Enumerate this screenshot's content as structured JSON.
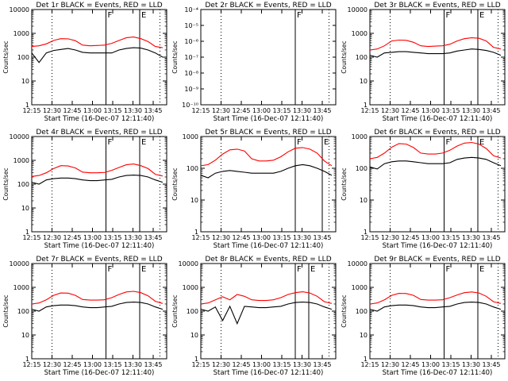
{
  "figure": {
    "x_ticks": [
      "12:15",
      "12:30",
      "12:45",
      "13:00",
      "13:15",
      "13:30",
      "13:45"
    ],
    "x_tick_values": [
      0,
      15,
      30,
      45,
      60,
      75,
      90
    ],
    "x_range": [
      0,
      100
    ],
    "xlabel": "Start Time (16-Dec-07 12:11:40)",
    "ylabel": "Counts/sec",
    "log_ticks": [
      "1",
      "10",
      "100",
      "1000",
      "10000"
    ],
    "tiny_ticks": [
      "10⁻⁴",
      "10⁻⁵",
      "10⁻⁶",
      "10⁻⁷",
      "10⁻⁸",
      "10⁻⁹",
      "10⁻¹⁰"
    ],
    "marker_labels": [
      "E",
      "F",
      "E"
    ],
    "series_colors": {
      "events": "#000000",
      "lld": "#ff0000"
    }
  },
  "chart_data": [
    {
      "type": "line",
      "title": "Det 1r BLACK = Events, RED = LLD",
      "y_scale": "log",
      "ylim": [
        1,
        10000
      ],
      "markers": [
        {
          "minute": 0,
          "style": "dotted"
        },
        {
          "minute": 15,
          "style": "dotted"
        },
        {
          "minute": 55,
          "style": "solid",
          "label": "F"
        },
        {
          "minute": 80,
          "style": "solid",
          "label": "E"
        },
        {
          "minute": 95,
          "style": "dotted"
        }
      ],
      "events": [
        150,
        60,
        150,
        190,
        210,
        230,
        200,
        160,
        150,
        150,
        150,
        150,
        200,
        230,
        250,
        240,
        200,
        150,
        100
      ],
      "lld": [
        280,
        300,
        360,
        500,
        600,
        590,
        490,
        320,
        300,
        310,
        320,
        380,
        500,
        650,
        700,
        600,
        450,
        280,
        250
      ]
    },
    {
      "type": "line",
      "title": "Det 2r BLACK = Events, RED = LLD",
      "y_scale": "log",
      "ylim": [
        1e-10,
        0.0001
      ],
      "markers": [
        {
          "minute": 15,
          "style": "dotted"
        },
        {
          "minute": 70,
          "style": "solid",
          "label": "F"
        },
        {
          "minute": 95,
          "style": "dotted"
        }
      ],
      "events": [],
      "lld": []
    },
    {
      "type": "line",
      "title": "Det 3r BLACK = Events, RED = LLD",
      "y_scale": "log",
      "ylim": [
        1,
        10000
      ],
      "markers": [
        {
          "minute": 15,
          "style": "dotted"
        },
        {
          "minute": 55,
          "style": "solid",
          "label": "F"
        },
        {
          "minute": 80,
          "style": "solid",
          "label": "E"
        },
        {
          "minute": 95,
          "style": "dotted"
        }
      ],
      "events": [
        120,
        100,
        150,
        160,
        170,
        170,
        160,
        150,
        140,
        140,
        140,
        150,
        180,
        200,
        220,
        210,
        190,
        160,
        120
      ],
      "lld": [
        200,
        220,
        300,
        480,
        520,
        510,
        420,
        300,
        280,
        290,
        300,
        350,
        480,
        600,
        650,
        620,
        480,
        260,
        220
      ]
    },
    {
      "type": "line",
      "title": "Det 4r BLACK = Events, RED = LLD",
      "y_scale": "log",
      "ylim": [
        1,
        10000
      ],
      "markers": [
        {
          "minute": 0,
          "style": "dotted"
        },
        {
          "minute": 15,
          "style": "dotted"
        },
        {
          "minute": 55,
          "style": "solid",
          "label": "F"
        },
        {
          "minute": 80,
          "style": "solid",
          "label": "E"
        },
        {
          "minute": 95,
          "style": "dotted"
        }
      ],
      "events": [
        120,
        100,
        150,
        170,
        180,
        180,
        170,
        150,
        140,
        140,
        150,
        160,
        200,
        230,
        240,
        230,
        200,
        150,
        120
      ],
      "lld": [
        210,
        230,
        300,
        450,
        600,
        580,
        480,
        320,
        300,
        300,
        310,
        380,
        500,
        650,
        700,
        600,
        450,
        260,
        220
      ]
    },
    {
      "type": "line",
      "title": "Det 5r BLACK = Events, RED = LLD",
      "y_scale": "log",
      "ylim": [
        1,
        1000
      ],
      "markers": [
        {
          "minute": 15,
          "style": "dotted"
        },
        {
          "minute": 70,
          "style": "solid",
          "label": "F"
        },
        {
          "minute": 90,
          "style": "solid",
          "label": "E"
        },
        {
          "minute": 95,
          "style": "dotted"
        }
      ],
      "events": [
        60,
        50,
        70,
        80,
        85,
        80,
        75,
        70,
        70,
        70,
        70,
        80,
        100,
        120,
        130,
        120,
        100,
        80,
        60
      ],
      "lld": [
        120,
        130,
        180,
        280,
        380,
        400,
        350,
        200,
        170,
        170,
        180,
        230,
        330,
        430,
        450,
        400,
        300,
        170,
        120
      ]
    },
    {
      "type": "line",
      "title": "Det 6r BLACK = Events, RED = LLD",
      "y_scale": "log",
      "ylim": [
        1,
        1000
      ],
      "markers": [
        {
          "minute": 15,
          "style": "dotted"
        },
        {
          "minute": 55,
          "style": "solid",
          "label": "F"
        },
        {
          "minute": 80,
          "style": "solid",
          "label": "E"
        },
        {
          "minute": 95,
          "style": "dotted"
        }
      ],
      "events": [
        110,
        95,
        140,
        160,
        170,
        170,
        160,
        150,
        140,
        140,
        140,
        150,
        190,
        210,
        220,
        210,
        190,
        150,
        120
      ],
      "lld": [
        200,
        220,
        300,
        460,
        600,
        580,
        450,
        300,
        280,
        280,
        300,
        370,
        500,
        620,
        650,
        580,
        420,
        250,
        210
      ]
    },
    {
      "type": "line",
      "title": "Det 7r BLACK = Events, RED = LLD",
      "y_scale": "log",
      "ylim": [
        1,
        10000
      ],
      "markers": [
        {
          "minute": 0,
          "style": "dotted"
        },
        {
          "minute": 15,
          "style": "dotted"
        },
        {
          "minute": 55,
          "style": "solid",
          "label": "F"
        },
        {
          "minute": 80,
          "style": "solid",
          "label": "E"
        },
        {
          "minute": 95,
          "style": "dotted"
        }
      ],
      "events": [
        120,
        100,
        150,
        170,
        180,
        180,
        170,
        150,
        140,
        140,
        150,
        160,
        200,
        230,
        240,
        230,
        200,
        150,
        120
      ],
      "lld": [
        200,
        220,
        300,
        460,
        580,
        570,
        460,
        310,
        290,
        290,
        300,
        370,
        500,
        640,
        680,
        600,
        440,
        260,
        210
      ]
    },
    {
      "type": "line",
      "title": "Det 8r BLACK = Events, RED = LLD",
      "y_scale": "log",
      "ylim": [
        1,
        10000
      ],
      "markers": [
        {
          "minute": 15,
          "style": "dotted"
        },
        {
          "minute": 70,
          "style": "solid",
          "label": "F"
        },
        {
          "minute": 80,
          "style": "solid",
          "label": "E"
        },
        {
          "minute": 95,
          "style": "dotted"
        }
      ],
      "events": [
        120,
        100,
        150,
        40,
        160,
        30,
        160,
        150,
        140,
        140,
        150,
        160,
        200,
        230,
        240,
        230,
        200,
        150,
        120
      ],
      "lld": [
        200,
        220,
        300,
        400,
        300,
        500,
        420,
        300,
        280,
        280,
        300,
        370,
        500,
        600,
        650,
        580,
        420,
        250,
        210
      ]
    },
    {
      "type": "line",
      "title": "Det 9r BLACK = Events, RED = LLD",
      "y_scale": "log",
      "ylim": [
        1,
        10000
      ],
      "markers": [
        {
          "minute": 15,
          "style": "dotted"
        },
        {
          "minute": 55,
          "style": "solid",
          "label": "F"
        },
        {
          "minute": 80,
          "style": "solid",
          "label": "E"
        },
        {
          "minute": 95,
          "style": "dotted"
        }
      ],
      "events": [
        120,
        100,
        150,
        170,
        180,
        180,
        170,
        150,
        140,
        140,
        150,
        160,
        200,
        230,
        240,
        230,
        200,
        150,
        120
      ],
      "lld": [
        200,
        220,
        300,
        460,
        560,
        550,
        460,
        310,
        290,
        290,
        300,
        370,
        480,
        600,
        640,
        580,
        420,
        250,
        210
      ]
    }
  ]
}
